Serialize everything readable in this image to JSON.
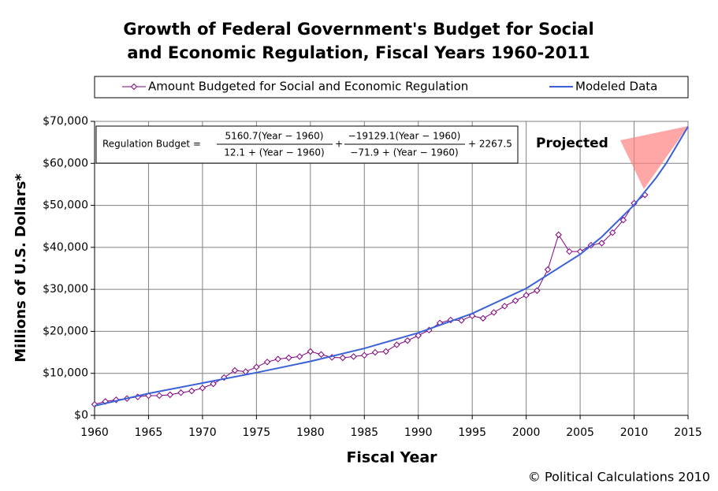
{
  "chart_data": {
    "type": "line",
    "title": [
      "Growth of Federal Government's Budget for Social",
      "and Economic Regulation, Fiscal Years 1960-2011"
    ],
    "x_label": "Fiscal Year",
    "y_label": "Millions of U.S. Dollars*",
    "annotation": "Projected",
    "equation": {
      "lhs": "Regulation Budget =",
      "num1": "5160.7(Year − 1960)",
      "den1": "12.1 + (Year − 1960)",
      "plus": "+",
      "num2": "−19129.1(Year − 1960)",
      "den2": "−71.9 + (Year − 1960)",
      "const": "+ 2267.5"
    },
    "credit": "© Political Calculations 2010",
    "xlim": [
      1960,
      2015
    ],
    "xticks": [
      1960,
      1965,
      1970,
      1975,
      1980,
      1985,
      1990,
      1995,
      2000,
      2005,
      2010,
      2015
    ],
    "ylim": [
      0,
      70000
    ],
    "yticks": [
      {
        "value": 0,
        "label": "$0"
      },
      {
        "value": 10000,
        "label": "$10,000"
      },
      {
        "value": 20000,
        "label": "$20,000"
      },
      {
        "value": 30000,
        "label": "$30,000"
      },
      {
        "value": 40000,
        "label": "$40,000"
      },
      {
        "value": 50000,
        "label": "$50,000"
      },
      {
        "value": 60000,
        "label": "$60,000"
      },
      {
        "value": 70000,
        "label": "$70,000"
      }
    ],
    "grid": true,
    "series": [
      {
        "name": "Amount Budgeted for Social and Economic Regulation",
        "color": "#800080",
        "marker": "diamond",
        "x": [
          1960,
          1961,
          1962,
          1963,
          1964,
          1965,
          1966,
          1967,
          1968,
          1969,
          1970,
          1971,
          1972,
          1973,
          1974,
          1975,
          1976,
          1977,
          1978,
          1979,
          1980,
          1981,
          1982,
          1983,
          1984,
          1985,
          1986,
          1987,
          1988,
          1989,
          1990,
          1991,
          1992,
          1993,
          1994,
          1995,
          1996,
          1997,
          1998,
          1999,
          2000,
          2001,
          2002,
          2003,
          2004,
          2005,
          2006,
          2007,
          2008,
          2009,
          2010,
          2011
        ],
        "values": [
          2600,
          3300,
          3700,
          4000,
          4400,
          4700,
          4700,
          4900,
          5400,
          5800,
          6500,
          7500,
          9000,
          10700,
          10400,
          11500,
          12700,
          13400,
          13700,
          14000,
          15200,
          14500,
          13800,
          13700,
          14000,
          14300,
          15000,
          15200,
          16800,
          17800,
          19000,
          20300,
          22000,
          22700,
          22600,
          23700,
          23100,
          24500,
          26000,
          27300,
          28600,
          29700,
          34700,
          43000,
          39000,
          39000,
          40500,
          41000,
          43500,
          46500,
          50500,
          52500
        ]
      },
      {
        "name": "Modeled Data",
        "color": "#3a62d8",
        "marker": "none",
        "x": [
          1960,
          1965,
          1970,
          1975,
          1980,
          1985,
          1990,
          1995,
          2000,
          2005,
          2007,
          2010,
          2012,
          2013,
          2015
        ],
        "values": [
          2268,
          5207,
          7693,
          10166,
          12854,
          15942,
          19641,
          24246,
          30216,
          38335,
          42479,
          50097,
          56440,
          60112,
          68752
        ]
      }
    ]
  }
}
